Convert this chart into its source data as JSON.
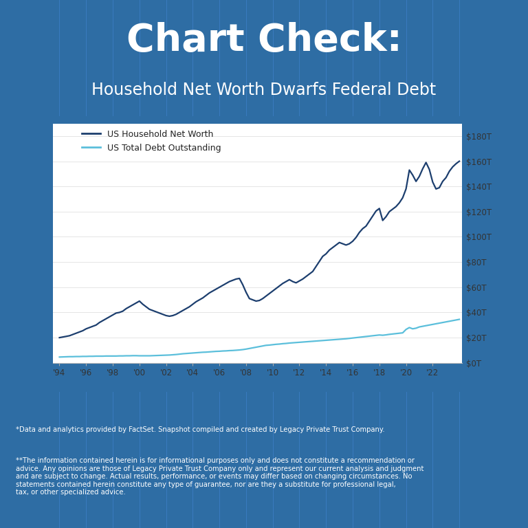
{
  "title_line1": "Chart Check:",
  "title_line2": "Household Net Worth Dwarfs Federal Debt",
  "bg_color": "#2e6da4",
  "bg_stripe_color": "#3575ae",
  "chart_bg_color": "#ffffff",
  "header_text_color": "#ffffff",
  "footer_text_color": "#ffffff",
  "line1_color": "#1c3e6e",
  "line2_color": "#5bbfdb",
  "legend_label1": "US Household Net Worth",
  "legend_label2": "US Total Debt Outstanding",
  "footnote1": "*Data and analytics provided by FactSet. Snapshot compiled and created by Legacy Private Trust Company.",
  "footnote2": "**The information contained herein is for informational purposes only and does not constitute a recommendation or advice. Any opinions are those of Legacy Private Trust Company only and represent our current analysis and judgment and are subject to change. Actual results, performance, or events may differ based on changing circumstances. No statements contained herein constitute any type of guarantee, nor are they a substitute for professional legal, tax, or other specialized advice.",
  "x_tick_labels": [
    "'94",
    "'96",
    "'98",
    "'00",
    "'02",
    "'04",
    "'06",
    "'08",
    "'10",
    "'12",
    "'14",
    "'16",
    "'18",
    "'20",
    "'22"
  ],
  "x_tick_years": [
    1994,
    1996,
    1998,
    2000,
    2002,
    2004,
    2006,
    2008,
    2010,
    2012,
    2014,
    2016,
    2018,
    2020,
    2022
  ],
  "y_tick_labels": [
    "$0T",
    "$20T",
    "$40T",
    "$60T",
    "$80T",
    "$100T",
    "$120T",
    "$140T",
    "$160T",
    "$180T"
  ],
  "y_tick_values": [
    0,
    20,
    40,
    60,
    80,
    100,
    120,
    140,
    160,
    180
  ],
  "ylim": [
    0,
    190
  ],
  "xlim_start": 1993.5,
  "xlim_end": 2024.2,
  "household_net_worth_years": [
    1994.0,
    1994.25,
    1994.5,
    1994.75,
    1995.0,
    1995.25,
    1995.5,
    1995.75,
    1996.0,
    1996.25,
    1996.5,
    1996.75,
    1997.0,
    1997.25,
    1997.5,
    1997.75,
    1998.0,
    1998.25,
    1998.5,
    1998.75,
    1999.0,
    1999.25,
    1999.5,
    1999.75,
    2000.0,
    2000.25,
    2000.5,
    2000.75,
    2001.0,
    2001.25,
    2001.5,
    2001.75,
    2002.0,
    2002.25,
    2002.5,
    2002.75,
    2003.0,
    2003.25,
    2003.5,
    2003.75,
    2004.0,
    2004.25,
    2004.5,
    2004.75,
    2005.0,
    2005.25,
    2005.5,
    2005.75,
    2006.0,
    2006.25,
    2006.5,
    2006.75,
    2007.0,
    2007.25,
    2007.5,
    2007.75,
    2008.0,
    2008.25,
    2008.5,
    2008.75,
    2009.0,
    2009.25,
    2009.5,
    2009.75,
    2010.0,
    2010.25,
    2010.5,
    2010.75,
    2011.0,
    2011.25,
    2011.5,
    2011.75,
    2012.0,
    2012.25,
    2012.5,
    2012.75,
    2013.0,
    2013.25,
    2013.5,
    2013.75,
    2014.0,
    2014.25,
    2014.5,
    2014.75,
    2015.0,
    2015.25,
    2015.5,
    2015.75,
    2016.0,
    2016.25,
    2016.5,
    2016.75,
    2017.0,
    2017.25,
    2017.5,
    2017.75,
    2018.0,
    2018.25,
    2018.5,
    2018.75,
    2019.0,
    2019.25,
    2019.5,
    2019.75,
    2020.0,
    2020.25,
    2020.5,
    2020.75,
    2021.0,
    2021.25,
    2021.5,
    2021.75,
    2022.0,
    2022.25,
    2022.5,
    2022.75,
    2023.0,
    2023.25,
    2023.5,
    2023.75,
    2024.0
  ],
  "household_net_worth_values": [
    20.0,
    20.5,
    21.0,
    21.5,
    22.5,
    23.5,
    24.5,
    25.5,
    27.0,
    28.0,
    29.0,
    30.0,
    32.0,
    33.5,
    35.0,
    36.5,
    38.0,
    39.5,
    40.0,
    41.0,
    43.0,
    44.5,
    46.0,
    47.5,
    49.0,
    46.5,
    44.5,
    42.5,
    41.5,
    40.5,
    39.5,
    38.5,
    37.5,
    37.0,
    37.5,
    38.5,
    40.0,
    41.5,
    43.0,
    44.5,
    46.5,
    48.5,
    50.0,
    51.5,
    53.5,
    55.5,
    57.0,
    58.5,
    60.0,
    61.5,
    63.0,
    64.5,
    65.5,
    66.5,
    67.0,
    62.0,
    56.0,
    51.0,
    50.0,
    49.0,
    49.5,
    51.0,
    53.0,
    55.0,
    57.0,
    59.0,
    61.0,
    63.0,
    64.5,
    66.0,
    64.5,
    63.5,
    65.0,
    66.5,
    68.5,
    70.5,
    72.5,
    76.5,
    80.5,
    84.5,
    86.5,
    89.5,
    91.5,
    93.5,
    95.5,
    94.5,
    93.5,
    94.5,
    96.5,
    99.5,
    103.5,
    106.5,
    108.5,
    112.5,
    116.5,
    120.5,
    122.5,
    113.0,
    116.0,
    120.0,
    122.0,
    124.0,
    127.0,
    131.0,
    138.0,
    153.0,
    149.0,
    144.0,
    148.0,
    154.0,
    159.0,
    153.5,
    143.5,
    138.0,
    139.0,
    144.0,
    147.0,
    152.0,
    155.5,
    158.0,
    160.0
  ],
  "federal_debt_years": [
    1994.0,
    1994.25,
    1994.5,
    1994.75,
    1995.0,
    1995.25,
    1995.5,
    1995.75,
    1996.0,
    1996.25,
    1996.5,
    1996.75,
    1997.0,
    1997.25,
    1997.5,
    1997.75,
    1998.0,
    1998.25,
    1998.5,
    1998.75,
    1999.0,
    1999.25,
    1999.5,
    1999.75,
    2000.0,
    2000.25,
    2000.5,
    2000.75,
    2001.0,
    2001.25,
    2001.5,
    2001.75,
    2002.0,
    2002.25,
    2002.5,
    2002.75,
    2003.0,
    2003.25,
    2003.5,
    2003.75,
    2004.0,
    2004.25,
    2004.5,
    2004.75,
    2005.0,
    2005.25,
    2005.5,
    2005.75,
    2006.0,
    2006.25,
    2006.5,
    2006.75,
    2007.0,
    2007.25,
    2007.5,
    2007.75,
    2008.0,
    2008.25,
    2008.5,
    2008.75,
    2009.0,
    2009.25,
    2009.5,
    2009.75,
    2010.0,
    2010.25,
    2010.5,
    2010.75,
    2011.0,
    2011.25,
    2011.5,
    2011.75,
    2012.0,
    2012.25,
    2012.5,
    2012.75,
    2013.0,
    2013.25,
    2013.5,
    2013.75,
    2014.0,
    2014.25,
    2014.5,
    2014.75,
    2015.0,
    2015.25,
    2015.5,
    2015.75,
    2016.0,
    2016.25,
    2016.5,
    2016.75,
    2017.0,
    2017.25,
    2017.5,
    2017.75,
    2018.0,
    2018.25,
    2018.5,
    2018.75,
    2019.0,
    2019.25,
    2019.5,
    2019.75,
    2020.0,
    2020.25,
    2020.5,
    2020.75,
    2021.0,
    2021.25,
    2021.5,
    2021.75,
    2022.0,
    2022.25,
    2022.5,
    2022.75,
    2023.0,
    2023.25,
    2023.5,
    2023.75,
    2024.0
  ],
  "federal_debt_values": [
    4.6,
    4.7,
    4.8,
    4.9,
    4.9,
    5.0,
    5.0,
    5.1,
    5.1,
    5.2,
    5.2,
    5.3,
    5.3,
    5.3,
    5.4,
    5.4,
    5.4,
    5.4,
    5.5,
    5.5,
    5.6,
    5.6,
    5.7,
    5.7,
    5.6,
    5.6,
    5.6,
    5.6,
    5.7,
    5.8,
    5.9,
    6.0,
    6.1,
    6.2,
    6.4,
    6.6,
    6.9,
    7.2,
    7.4,
    7.6,
    7.8,
    8.0,
    8.2,
    8.4,
    8.5,
    8.7,
    8.9,
    9.1,
    9.2,
    9.4,
    9.5,
    9.7,
    9.8,
    10.0,
    10.2,
    10.5,
    10.9,
    11.4,
    11.9,
    12.4,
    12.9,
    13.4,
    13.9,
    14.1,
    14.4,
    14.7,
    14.9,
    15.2,
    15.4,
    15.7,
    15.9,
    16.1,
    16.3,
    16.5,
    16.7,
    16.9,
    17.1,
    17.3,
    17.5,
    17.7,
    17.9,
    18.1,
    18.3,
    18.5,
    18.7,
    18.9,
    19.1,
    19.4,
    19.7,
    20.0,
    20.3,
    20.6,
    20.9,
    21.2,
    21.5,
    21.8,
    22.1,
    21.9,
    22.2,
    22.6,
    22.9,
    23.2,
    23.5,
    23.8,
    26.5,
    28.0,
    27.0,
    27.5,
    28.5,
    29.0,
    29.5,
    30.0,
    30.5,
    31.0,
    31.5,
    32.0,
    32.5,
    33.0,
    33.5,
    34.0,
    34.5
  ],
  "stripe_years": [
    1994,
    1996,
    1998,
    2000,
    2002,
    2004,
    2006,
    2008,
    2010,
    2012,
    2014,
    2016,
    2018,
    2020,
    2022,
    2024
  ]
}
